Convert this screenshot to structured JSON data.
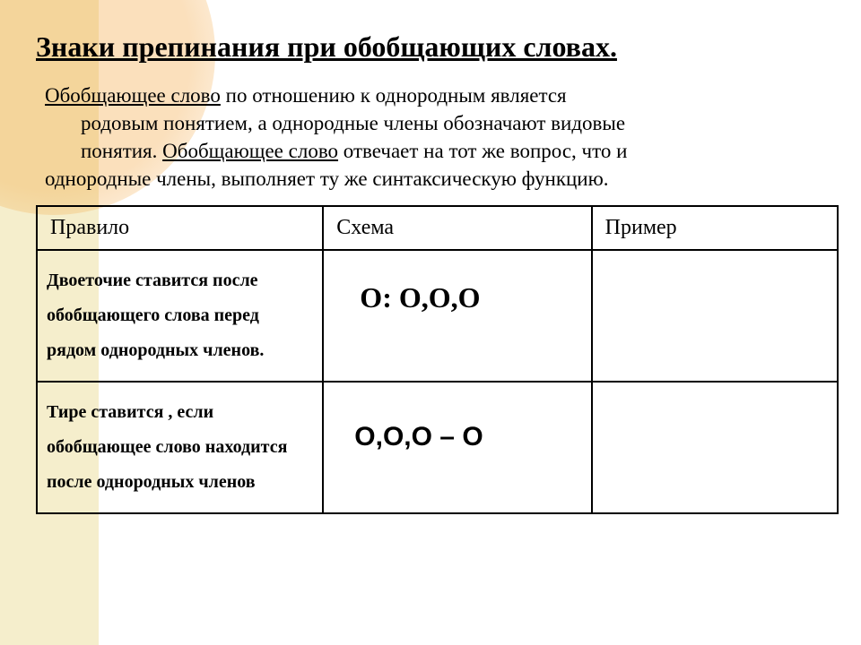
{
  "title": "Знаки  препинания при обобщающих словах.",
  "description": {
    "part1": "Обобщающее слово",
    "part2": " по отношению к однородным является",
    "part3": "родовым понятием, а однородные члены  обозначают видовые",
    "part4": "понятия. ",
    "part5": "Обобщающее слово",
    "part6": " отвечает на тот же вопрос, что и",
    "part7": "однородные члены, выполняет ту же синтаксическую функцию."
  },
  "table": {
    "headers": {
      "rule": "Правило",
      "schema": "Схема",
      "example": "Пример"
    },
    "rows": [
      {
        "rule": "Двоеточие ставится после обобщающего слова перед рядом однородных членов.",
        "schema": "О: О,О,О",
        "example": ""
      },
      {
        "rule": " Тире ставится , если обобщающее слово находится после однородных членов",
        "schema": "О,О,О – О",
        "example": ""
      }
    ]
  },
  "colors": {
    "left_band": "#f5eecc",
    "circle": "#f3a640",
    "text": "#000000",
    "border": "#000000",
    "background": "#ffffff"
  }
}
